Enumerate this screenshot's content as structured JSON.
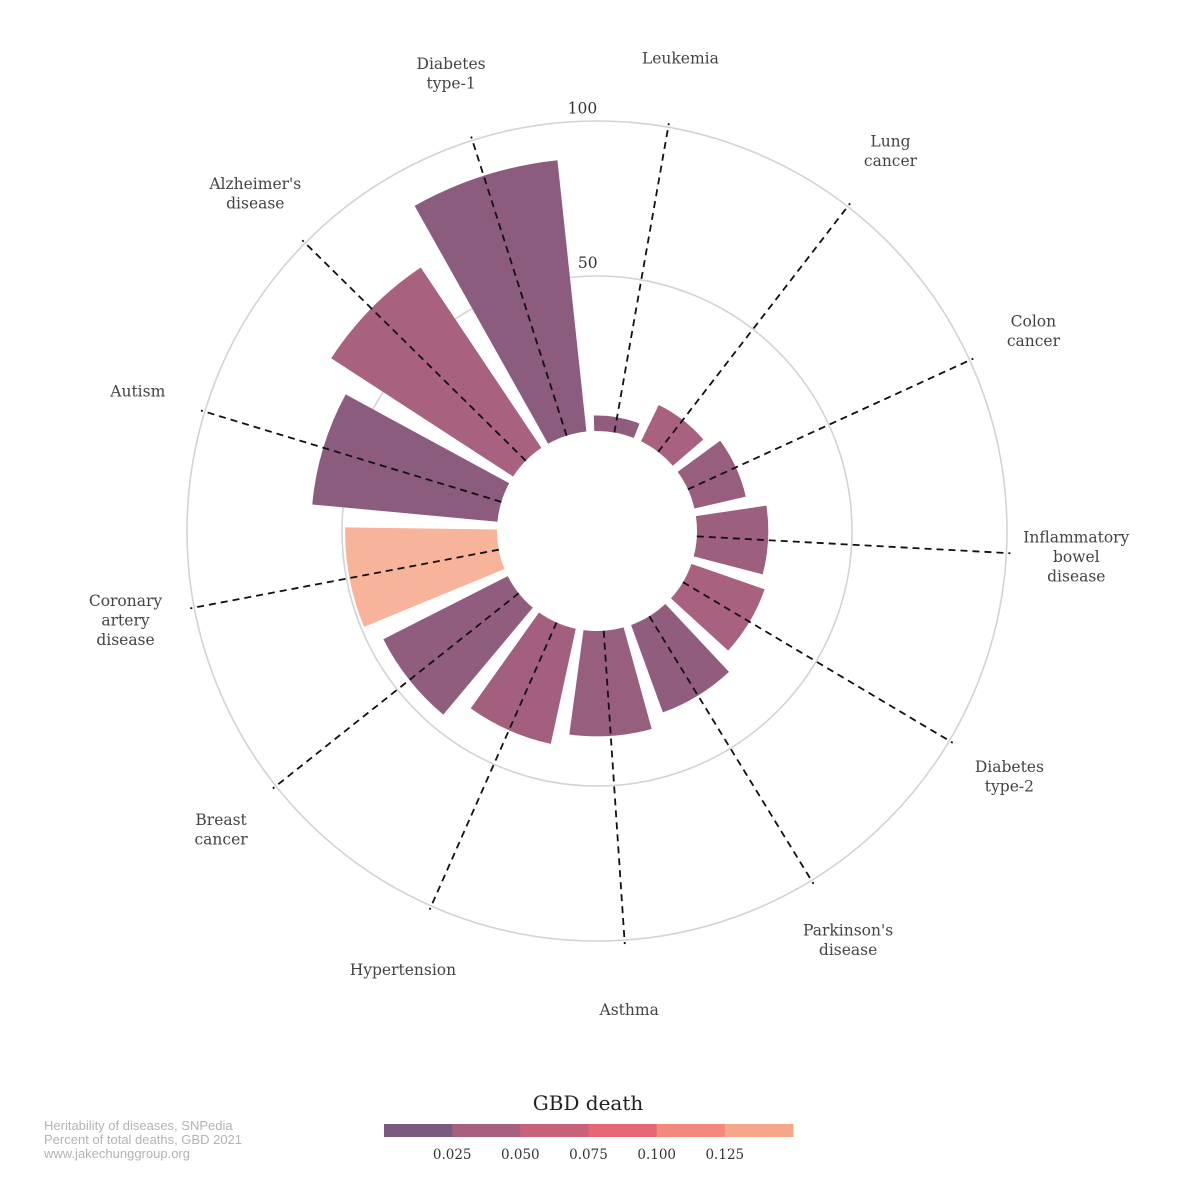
{
  "chart_data": {
    "type": "radial-bar",
    "categories": [
      "Leukemia",
      "Lung cancer",
      "Colon cancer",
      "Inflammatory bowel disease",
      "Diabetes type-2",
      "Parkinson's disease",
      "Asthma",
      "Hypertension",
      "Breast cancer",
      "Coronary artery disease",
      "Autism",
      "Alzheimer's disease",
      "Diabetes type-1"
    ],
    "category_label_lines": [
      [
        "Leukemia"
      ],
      [
        "Lung",
        "cancer"
      ],
      [
        "Colon",
        "cancer"
      ],
      [
        "Inflammatory",
        "bowel",
        "disease"
      ],
      [
        "Diabetes",
        "type-2"
      ],
      [
        "Parkinson's",
        "disease"
      ],
      [
        "Asthma"
      ],
      [
        "Hypertension"
      ],
      [
        "Breast",
        "cancer"
      ],
      [
        "Coronary",
        "artery",
        "disease"
      ],
      [
        "Autism"
      ],
      [
        "Alzheimer's",
        "disease"
      ],
      [
        "Diabetes",
        "type-1"
      ]
    ],
    "values": [
      5,
      13,
      17,
      23,
      25,
      30,
      34,
      38,
      45,
      49,
      60,
      70,
      88
    ],
    "color_values": [
      0.02,
      0.04,
      0.025,
      0.03,
      0.04,
      0.02,
      0.025,
      0.035,
      0.02,
      0.13,
      0.015,
      0.04,
      0.015
    ],
    "ylim": [
      0,
      100
    ],
    "radial_ticks": [
      50,
      100
    ],
    "radial_tick_labels": [
      "50",
      "100"
    ],
    "grid": true,
    "colorbar": {
      "title": "GBD death",
      "range": [
        0,
        0.15
      ],
      "ticks": [
        0.025,
        0.05,
        0.075,
        0.1,
        0.125
      ],
      "tick_labels": [
        "0.025",
        "0.050",
        "0.075",
        "0.100",
        "0.125"
      ],
      "colors": [
        "#7a5a7e",
        "#a6607e",
        "#c7627a",
        "#e66877",
        "#f3887c",
        "#f6a78a"
      ]
    },
    "bar_colors": {
      "low": "#7a5a7e",
      "mid": "#a6607e",
      "high": "#f7b49a"
    }
  },
  "caption": {
    "line1": "Heritability of diseases, SNPedia",
    "line2": "Percent of total deaths, GBD 2021",
    "line3": "www.jakechunggroup.org"
  }
}
